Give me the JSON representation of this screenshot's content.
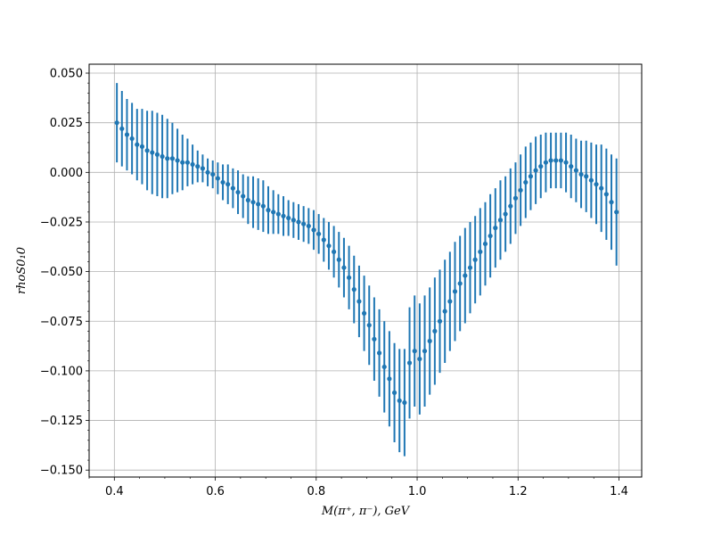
{
  "chart_data": {
    "type": "scatter",
    "title": "",
    "xlabel": "M(π⁺, π⁻), GeV",
    "ylabel": "rhoS0₁0",
    "xlim": [
      0.35,
      1.445
    ],
    "ylim": [
      -0.1535,
      0.0545
    ],
    "grid": true,
    "legend": "none",
    "series_color": "#1f77b4",
    "x_ticks": [
      0.4,
      0.6,
      0.8,
      1.0,
      1.2,
      1.4
    ],
    "x_tick_labels": [
      "0.4",
      "0.6",
      "0.8",
      "1.0",
      "1.2",
      "1.4"
    ],
    "y_ticks": [
      0.05,
      0.025,
      0.0,
      -0.025,
      -0.05,
      -0.075,
      -0.1,
      -0.125,
      -0.15
    ],
    "y_tick_labels": [
      "0.050",
      "0.025",
      "0.000",
      "−0.025",
      "−0.050",
      "−0.075",
      "−0.100",
      "−0.125",
      "−0.150"
    ],
    "x": [
      0.405,
      0.415,
      0.425,
      0.435,
      0.445,
      0.455,
      0.465,
      0.475,
      0.485,
      0.495,
      0.505,
      0.515,
      0.525,
      0.535,
      0.545,
      0.555,
      0.565,
      0.575,
      0.585,
      0.595,
      0.605,
      0.615,
      0.625,
      0.635,
      0.645,
      0.655,
      0.665,
      0.675,
      0.685,
      0.695,
      0.705,
      0.715,
      0.725,
      0.735,
      0.745,
      0.755,
      0.765,
      0.775,
      0.785,
      0.795,
      0.805,
      0.815,
      0.825,
      0.835,
      0.845,
      0.855,
      0.865,
      0.875,
      0.885,
      0.895,
      0.905,
      0.915,
      0.925,
      0.935,
      0.945,
      0.955,
      0.965,
      0.975,
      0.985,
      0.995,
      1.005,
      1.015,
      1.025,
      1.035,
      1.045,
      1.055,
      1.065,
      1.075,
      1.085,
      1.095,
      1.105,
      1.115,
      1.125,
      1.135,
      1.145,
      1.155,
      1.165,
      1.175,
      1.185,
      1.195,
      1.205,
      1.215,
      1.225,
      1.235,
      1.245,
      1.255,
      1.265,
      1.275,
      1.285,
      1.295,
      1.305,
      1.315,
      1.325,
      1.335,
      1.345,
      1.355,
      1.365,
      1.375,
      1.385,
      1.395
    ],
    "y": [
      0.025,
      0.022,
      0.019,
      0.017,
      0.014,
      0.013,
      0.011,
      0.01,
      0.009,
      0.008,
      0.007,
      0.007,
      0.006,
      0.005,
      0.005,
      0.004,
      0.003,
      0.002,
      0.0,
      -0.001,
      -0.003,
      -0.005,
      -0.006,
      -0.008,
      -0.01,
      -0.012,
      -0.014,
      -0.015,
      -0.016,
      -0.017,
      -0.019,
      -0.02,
      -0.021,
      -0.022,
      -0.023,
      -0.024,
      -0.025,
      -0.026,
      -0.027,
      -0.029,
      -0.031,
      -0.034,
      -0.037,
      -0.04,
      -0.044,
      -0.048,
      -0.053,
      -0.059,
      -0.065,
      -0.071,
      -0.077,
      -0.084,
      -0.091,
      -0.098,
      -0.104,
      -0.111,
      -0.115,
      -0.116,
      -0.096,
      -0.09,
      -0.094,
      -0.09,
      -0.085,
      -0.08,
      -0.075,
      -0.07,
      -0.065,
      -0.06,
      -0.056,
      -0.052,
      -0.048,
      -0.044,
      -0.04,
      -0.036,
      -0.032,
      -0.028,
      -0.024,
      -0.021,
      -0.017,
      -0.013,
      -0.009,
      -0.005,
      -0.002,
      0.001,
      0.003,
      0.005,
      0.006,
      0.006,
      0.006,
      0.005,
      0.003,
      0.001,
      -0.001,
      -0.002,
      -0.004,
      -0.006,
      -0.008,
      -0.011,
      -0.015,
      -0.02
    ],
    "yerr": [
      0.02,
      0.019,
      0.018,
      0.018,
      0.018,
      0.019,
      0.02,
      0.021,
      0.021,
      0.021,
      0.02,
      0.018,
      0.016,
      0.014,
      0.012,
      0.01,
      0.008,
      0.007,
      0.007,
      0.007,
      0.008,
      0.009,
      0.01,
      0.01,
      0.011,
      0.011,
      0.012,
      0.013,
      0.013,
      0.013,
      0.012,
      0.011,
      0.01,
      0.01,
      0.009,
      0.009,
      0.009,
      0.009,
      0.009,
      0.01,
      0.01,
      0.011,
      0.012,
      0.013,
      0.014,
      0.015,
      0.016,
      0.017,
      0.018,
      0.019,
      0.02,
      0.021,
      0.022,
      0.023,
      0.024,
      0.025,
      0.026,
      0.027,
      0.028,
      0.028,
      0.028,
      0.028,
      0.027,
      0.027,
      0.026,
      0.026,
      0.025,
      0.025,
      0.024,
      0.024,
      0.023,
      0.022,
      0.022,
      0.021,
      0.021,
      0.02,
      0.02,
      0.019,
      0.019,
      0.018,
      0.018,
      0.018,
      0.017,
      0.017,
      0.016,
      0.015,
      0.014,
      0.014,
      0.014,
      0.015,
      0.016,
      0.016,
      0.017,
      0.018,
      0.019,
      0.02,
      0.022,
      0.023,
      0.024,
      0.027
    ]
  }
}
